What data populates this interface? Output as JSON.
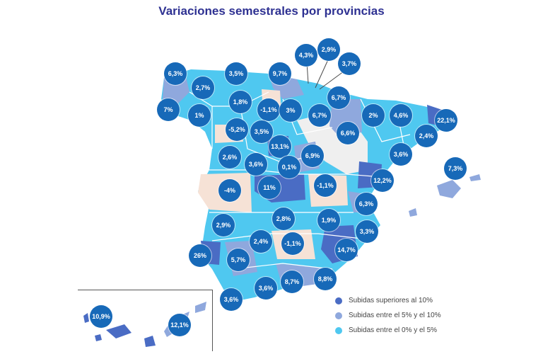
{
  "title": "Variaciones semestrales por provincias",
  "colors": {
    "above_10": "#4a6cc4",
    "between_5_10": "#8fa8dd",
    "between_0_5": "#4fc8f0",
    "negative": "#f6e2d6",
    "no_data": "#efefef",
    "bubble": "#1769b8",
    "title": "#2e3192"
  },
  "legend": [
    {
      "label": "Subidas superiores al 10%",
      "color": "#4a6cc4"
    },
    {
      "label": "Subidas entre el 5% y el 10%",
      "color": "#8fa8dd"
    },
    {
      "label": "Subidas entre el 0% y el 5%",
      "color": "#4fc8f0"
    }
  ],
  "provinces": [
    {
      "value": "4,3%"
    },
    {
      "value": "2,9%"
    },
    {
      "value": "3,7%"
    },
    {
      "value": "6,3%"
    },
    {
      "value": "3,5%"
    },
    {
      "value": "9,7%"
    },
    {
      "value": "2,7%"
    },
    {
      "value": "6,7%"
    },
    {
      "value": "1,8%"
    },
    {
      "value": "7%"
    },
    {
      "value": "1%"
    },
    {
      "value": "-1,1%"
    },
    {
      "value": "3%"
    },
    {
      "value": "6,7%"
    },
    {
      "value": "2%"
    },
    {
      "value": "4,6%"
    },
    {
      "value": "22,1%"
    },
    {
      "value": "-5,2%"
    },
    {
      "value": "3,5%"
    },
    {
      "value": "6,6%"
    },
    {
      "value": "2,4%"
    },
    {
      "value": "13,1%"
    },
    {
      "value": "2,6%"
    },
    {
      "value": "6,9%"
    },
    {
      "value": "3,6%"
    },
    {
      "value": "3,6%"
    },
    {
      "value": "0,1%"
    },
    {
      "value": "7,3%"
    },
    {
      "value": "12,2%"
    },
    {
      "value": "-4%"
    },
    {
      "value": "11%"
    },
    {
      "value": "-1,1%"
    },
    {
      "value": "6,3%"
    },
    {
      "value": "2,9%"
    },
    {
      "value": "2,8%"
    },
    {
      "value": "1,9%"
    },
    {
      "value": "3,3%"
    },
    {
      "value": "2,4%"
    },
    {
      "value": "-1,1%"
    },
    {
      "value": "26%"
    },
    {
      "value": "5,7%"
    },
    {
      "value": "14,7%"
    },
    {
      "value": "8,7%"
    },
    {
      "value": "8,8%"
    },
    {
      "value": "3,6%"
    },
    {
      "value": "3,6%"
    },
    {
      "value": "10,9%"
    },
    {
      "value": "12,1%"
    }
  ]
}
